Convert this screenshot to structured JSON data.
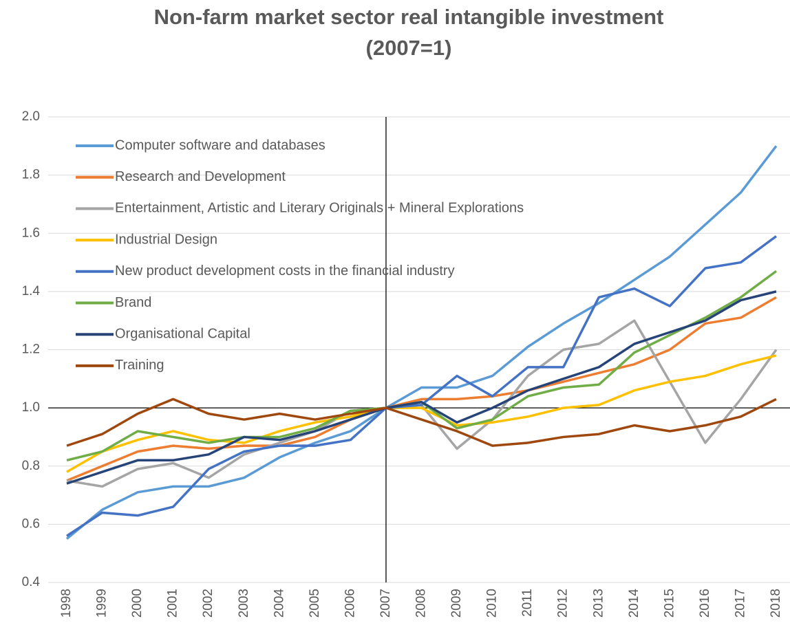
{
  "chart_data": {
    "type": "line",
    "title": [
      "Non-farm market sector real intangible investment",
      "(2007=1)"
    ],
    "categories": [
      "1998",
      "1999",
      "2000",
      "2001",
      "2002",
      "2003",
      "2004",
      "2005",
      "2006",
      "2007",
      "2008",
      "2009",
      "2010",
      "2011",
      "2012",
      "2013",
      "2014",
      "2015",
      "2016",
      "2017",
      "2018"
    ],
    "series": [
      {
        "name": "Computer software and databases",
        "color": "#5b9bd5",
        "values": [
          0.55,
          0.65,
          0.71,
          0.73,
          0.73,
          0.76,
          0.83,
          0.88,
          0.92,
          1.0,
          1.07,
          1.07,
          1.11,
          1.21,
          1.29,
          1.36,
          1.44,
          1.52,
          1.63,
          1.74,
          1.9
        ]
      },
      {
        "name": "Research and Development",
        "color": "#ed7d31",
        "values": [
          0.75,
          0.8,
          0.85,
          0.87,
          0.86,
          0.87,
          0.87,
          0.9,
          0.96,
          1.0,
          1.03,
          1.03,
          1.04,
          1.06,
          1.09,
          1.12,
          1.15,
          1.2,
          1.29,
          1.31,
          1.38
        ]
      },
      {
        "name": "Entertainment, Artistic and Literary Originals + Mineral Explorations",
        "color": "#a5a5a5",
        "values": [
          0.75,
          0.73,
          0.79,
          0.81,
          0.76,
          0.84,
          0.88,
          0.92,
          0.99,
          1.0,
          1.01,
          0.86,
          0.96,
          1.11,
          1.2,
          1.22,
          1.3,
          1.09,
          0.88,
          1.03,
          1.2
        ]
      },
      {
        "name": "Industrial Design",
        "color": "#ffc000",
        "values": [
          0.78,
          0.85,
          0.89,
          0.92,
          0.89,
          0.88,
          0.92,
          0.95,
          0.97,
          1.0,
          1.0,
          0.94,
          0.95,
          0.97,
          1.0,
          1.01,
          1.06,
          1.09,
          1.11,
          1.15,
          1.18
        ]
      },
      {
        "name": "New product development costs in the financial industry",
        "color": "#4472c4",
        "values": [
          0.56,
          0.64,
          0.63,
          0.66,
          0.79,
          0.85,
          0.87,
          0.87,
          0.89,
          1.0,
          1.01,
          1.11,
          1.04,
          1.14,
          1.14,
          1.38,
          1.41,
          1.35,
          1.48,
          1.5,
          1.59
        ]
      },
      {
        "name": "Brand",
        "color": "#70ad47",
        "values": [
          0.82,
          0.85,
          0.92,
          0.9,
          0.88,
          0.9,
          0.9,
          0.93,
          0.99,
          1.0,
          1.02,
          0.93,
          0.96,
          1.04,
          1.07,
          1.08,
          1.19,
          1.25,
          1.31,
          1.38,
          1.47
        ]
      },
      {
        "name": "Organisational Capital",
        "color": "#264478",
        "values": [
          0.74,
          0.78,
          0.82,
          0.82,
          0.84,
          0.9,
          0.89,
          0.92,
          0.96,
          1.0,
          1.02,
          0.95,
          1.0,
          1.06,
          1.1,
          1.14,
          1.22,
          1.26,
          1.3,
          1.37,
          1.4
        ]
      },
      {
        "name": "Training",
        "color": "#9e480e",
        "values": [
          0.87,
          0.91,
          0.98,
          1.03,
          0.98,
          0.96,
          0.98,
          0.96,
          0.98,
          1.0,
          0.96,
          0.92,
          0.87,
          0.88,
          0.9,
          0.91,
          0.94,
          0.92,
          0.94,
          0.97,
          1.03
        ]
      }
    ],
    "ylim": [
      0.4,
      2.0
    ],
    "yticks": [
      0.4,
      0.6,
      0.8,
      {
        "value": 1,
        "label": "1.0"
      },
      1.2,
      1.4,
      1.6,
      1.8,
      {
        "value": 2,
        "label": "2.0"
      }
    ],
    "grid": true,
    "axis_cross": {
      "x": "2007",
      "y": 1
    },
    "legend": "upper left"
  }
}
